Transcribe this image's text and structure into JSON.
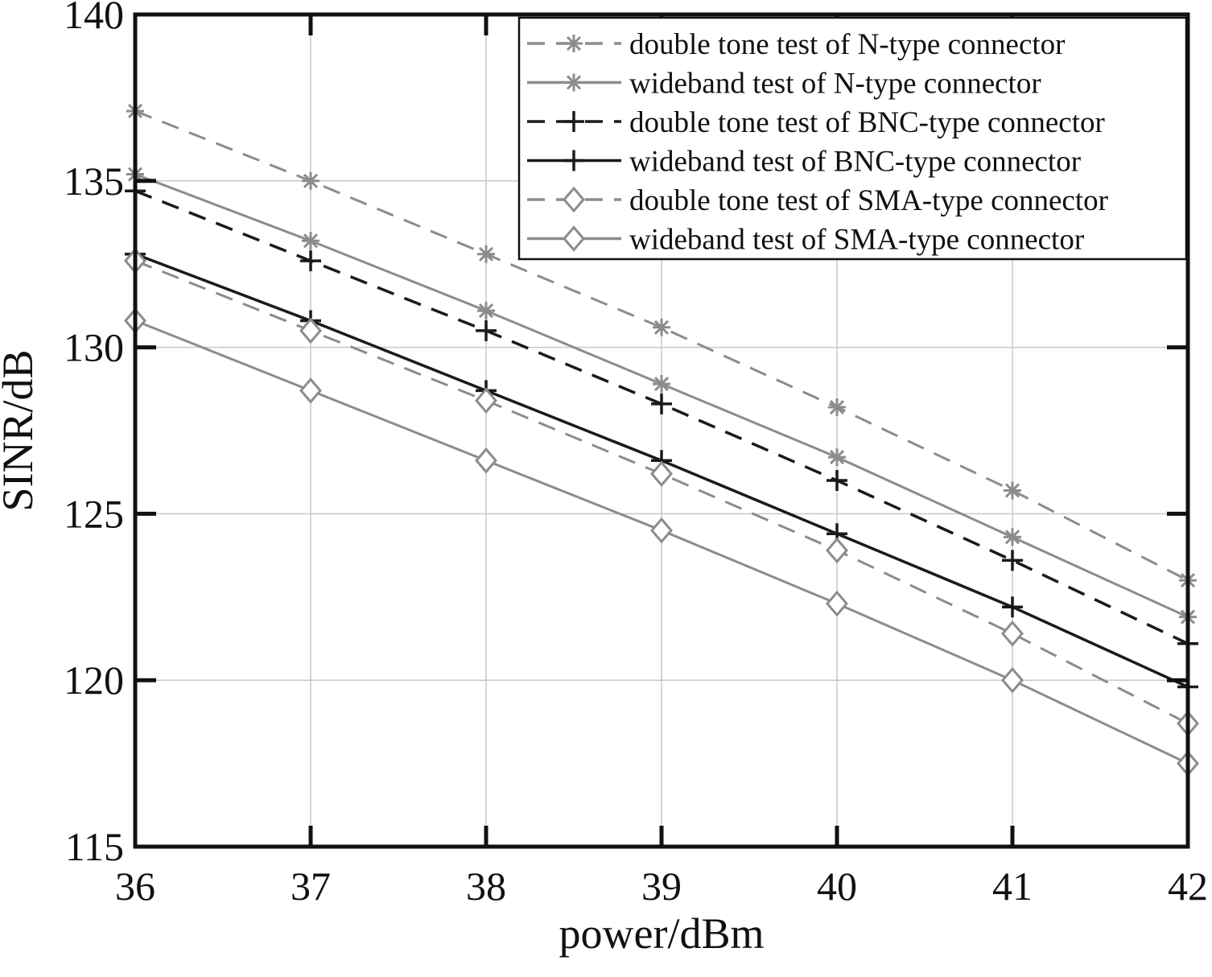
{
  "chart_data": {
    "type": "line",
    "title": "",
    "xlabel": "power/dBm",
    "ylabel": "SINR/dB",
    "xlim": [
      36,
      42
    ],
    "ylim": [
      115,
      140
    ],
    "x_ticks": [
      "36",
      "37",
      "38",
      "39",
      "40",
      "41",
      "42"
    ],
    "y_ticks": [
      "115",
      "120",
      "125",
      "130",
      "135",
      "140"
    ],
    "grid": true,
    "legend_position": "top-right",
    "x": [
      36,
      37,
      38,
      39,
      40,
      41,
      42
    ],
    "series": [
      {
        "name": "double tone test of N-type connector",
        "marker": "asterisk",
        "dash": "dashed",
        "color": "#8c8c8c",
        "values": [
          137.1,
          135.0,
          132.8,
          130.6,
          128.2,
          125.7,
          123.0
        ]
      },
      {
        "name": "wideband test of N-type connector",
        "marker": "asterisk",
        "dash": "solid",
        "color": "#8c8c8c",
        "values": [
          135.2,
          133.2,
          131.1,
          128.9,
          126.7,
          124.3,
          121.9
        ]
      },
      {
        "name": "double tone test of BNC-type connector",
        "marker": "plus",
        "dash": "dashed",
        "color": "#1a1a1a",
        "values": [
          134.7,
          132.6,
          130.5,
          128.3,
          126.0,
          123.6,
          121.1
        ]
      },
      {
        "name": "wideband test of BNC-type connector",
        "marker": "plus",
        "dash": "solid",
        "color": "#1a1a1a",
        "values": [
          132.8,
          130.8,
          128.7,
          126.6,
          124.4,
          122.2,
          119.8
        ]
      },
      {
        "name": "double tone test of SMA-type connector",
        "marker": "diamond",
        "dash": "dashed",
        "color": "#8c8c8c",
        "values": [
          132.6,
          130.5,
          128.4,
          126.2,
          123.9,
          121.4,
          118.7
        ]
      },
      {
        "name": "wideband test of SMA-type connector",
        "marker": "diamond",
        "dash": "solid",
        "color": "#8c8c8c",
        "values": [
          130.8,
          128.7,
          126.6,
          124.5,
          122.3,
          120.0,
          117.5
        ]
      }
    ]
  }
}
